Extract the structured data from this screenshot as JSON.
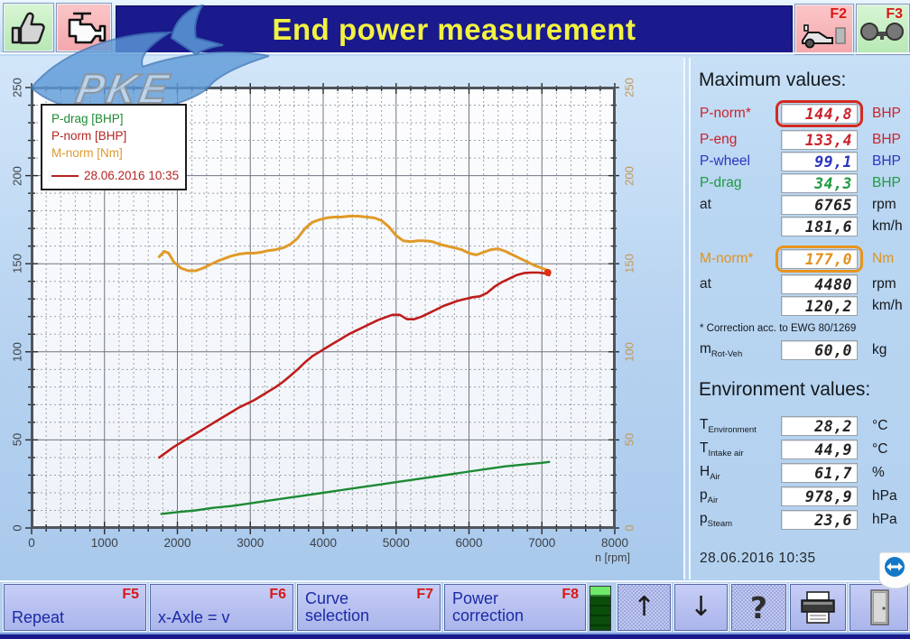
{
  "titlebar": {
    "title": "End power measurement",
    "f2": "F2",
    "f3": "F3"
  },
  "logo": {
    "text": "PKE"
  },
  "legend": {
    "items": [
      {
        "label": "P-drag [BHP]",
        "color": "#1e8a34"
      },
      {
        "label": "P-norm [BHP]",
        "color": "#b42424"
      },
      {
        "label": "M-norm [Nm]",
        "color": "#dc9a2e"
      }
    ],
    "date_line": "28.06.2016 10:35",
    "line_color": "#b42424"
  },
  "chart_data": {
    "type": "line",
    "xlabel": "n [rpm]",
    "xlim": [
      0,
      8000
    ],
    "x_major_step": 1000,
    "x_minor_step": 200,
    "ylim_left": [
      0,
      250
    ],
    "ylim_right": [
      0,
      250
    ],
    "y_major_step": 50,
    "y_minor_step": 10,
    "grid": true,
    "x_tick_labels": [
      "0",
      "1000",
      "2000",
      "3000",
      "4000",
      "5000",
      "6000",
      "7000",
      "8000"
    ],
    "y_tick_labels_left": [
      "0",
      "50",
      "100",
      "150",
      "200",
      "250"
    ],
    "y_tick_labels_right": [
      "0",
      "50",
      "100",
      "150",
      "200",
      "250"
    ],
    "series": [
      {
        "name": "M-norm [Nm]",
        "axis": "right",
        "color": "#e09a28",
        "width": 3,
        "points": [
          [
            1750,
            154
          ],
          [
            1820,
            157
          ],
          [
            1880,
            156
          ],
          [
            1950,
            151
          ],
          [
            2050,
            147.5
          ],
          [
            2150,
            146
          ],
          [
            2250,
            146
          ],
          [
            2350,
            147.5
          ],
          [
            2450,
            149.5
          ],
          [
            2550,
            151.5
          ],
          [
            2650,
            153
          ],
          [
            2750,
            154.5
          ],
          [
            2850,
            155.5
          ],
          [
            2950,
            156
          ],
          [
            3050,
            156
          ],
          [
            3150,
            156.5
          ],
          [
            3250,
            157.5
          ],
          [
            3350,
            158
          ],
          [
            3450,
            159
          ],
          [
            3550,
            161
          ],
          [
            3650,
            164.5
          ],
          [
            3750,
            170
          ],
          [
            3850,
            173.5
          ],
          [
            3950,
            175
          ],
          [
            4050,
            176
          ],
          [
            4150,
            176.5
          ],
          [
            4250,
            176.5
          ],
          [
            4350,
            177
          ],
          [
            4480,
            177
          ],
          [
            4600,
            176.5
          ],
          [
            4700,
            176
          ],
          [
            4800,
            174.5
          ],
          [
            4900,
            171
          ],
          [
            5000,
            166
          ],
          [
            5100,
            163
          ],
          [
            5200,
            162.5
          ],
          [
            5300,
            163
          ],
          [
            5400,
            163
          ],
          [
            5500,
            162.5
          ],
          [
            5600,
            161
          ],
          [
            5700,
            160
          ],
          [
            5800,
            159
          ],
          [
            5900,
            158
          ],
          [
            6000,
            156
          ],
          [
            6100,
            155
          ],
          [
            6200,
            156.5
          ],
          [
            6300,
            158
          ],
          [
            6400,
            158.5
          ],
          [
            6500,
            157
          ],
          [
            6600,
            155
          ],
          [
            6700,
            153
          ],
          [
            6800,
            151
          ],
          [
            6900,
            149
          ],
          [
            7000,
            147.5
          ],
          [
            7100,
            146
          ]
        ]
      },
      {
        "name": "P-norm [BHP]",
        "axis": "left",
        "color": "#bf1c1c",
        "width": 2.6,
        "points": [
          [
            1750,
            40
          ],
          [
            1850,
            43
          ],
          [
            1950,
            46
          ],
          [
            2050,
            48.5
          ],
          [
            2150,
            51
          ],
          [
            2250,
            53.5
          ],
          [
            2350,
            56
          ],
          [
            2450,
            58.5
          ],
          [
            2550,
            61
          ],
          [
            2650,
            63.5
          ],
          [
            2750,
            66
          ],
          [
            2850,
            68.5
          ],
          [
            2950,
            70.5
          ],
          [
            3050,
            72.5
          ],
          [
            3150,
            75
          ],
          [
            3250,
            77.5
          ],
          [
            3350,
            80
          ],
          [
            3450,
            83
          ],
          [
            3550,
            86.5
          ],
          [
            3650,
            90
          ],
          [
            3750,
            94
          ],
          [
            3850,
            97.5
          ],
          [
            3950,
            100
          ],
          [
            4050,
            102.5
          ],
          [
            4150,
            105
          ],
          [
            4250,
            107.5
          ],
          [
            4350,
            110
          ],
          [
            4450,
            112
          ],
          [
            4550,
            114
          ],
          [
            4650,
            116
          ],
          [
            4750,
            118
          ],
          [
            4850,
            119.5
          ],
          [
            4950,
            121
          ],
          [
            5050,
            121
          ],
          [
            5150,
            118.5
          ],
          [
            5250,
            118.5
          ],
          [
            5350,
            120
          ],
          [
            5450,
            122
          ],
          [
            5550,
            124
          ],
          [
            5650,
            126
          ],
          [
            5750,
            127.5
          ],
          [
            5850,
            129
          ],
          [
            5950,
            130
          ],
          [
            6050,
            131
          ],
          [
            6150,
            131.5
          ],
          [
            6250,
            133.5
          ],
          [
            6350,
            137
          ],
          [
            6450,
            139.5
          ],
          [
            6550,
            141.5
          ],
          [
            6650,
            143.5
          ],
          [
            6765,
            144.8
          ],
          [
            6850,
            145
          ],
          [
            6950,
            145
          ],
          [
            7050,
            144.5
          ],
          [
            7100,
            143.5
          ]
        ]
      },
      {
        "name": "P-drag [BHP]",
        "axis": "left",
        "color": "#1c8a34",
        "width": 2.4,
        "points": [
          [
            1780,
            8
          ],
          [
            2000,
            9
          ],
          [
            2250,
            10
          ],
          [
            2500,
            11.5
          ],
          [
            2750,
            12.5
          ],
          [
            3000,
            14
          ],
          [
            3250,
            15.5
          ],
          [
            3500,
            17
          ],
          [
            3750,
            18.5
          ],
          [
            4000,
            20
          ],
          [
            4250,
            21.5
          ],
          [
            4500,
            23
          ],
          [
            4750,
            24.5
          ],
          [
            5000,
            26
          ],
          [
            5250,
            27.5
          ],
          [
            5500,
            29
          ],
          [
            5750,
            30.5
          ],
          [
            6000,
            32
          ],
          [
            6250,
            33.5
          ],
          [
            6500,
            35
          ],
          [
            6750,
            36
          ],
          [
            7000,
            37
          ],
          [
            7100,
            37.5
          ]
        ]
      }
    ],
    "marker": {
      "x": 7080,
      "y": 145,
      "color": "#e03010"
    }
  },
  "max_values": {
    "title": "Maximum values:",
    "rows": [
      {
        "label": "P-norm*",
        "color": "#c8232d",
        "value": "144,8",
        "unit": "BHP",
        "highlight": "#d42a1e"
      },
      {
        "label": "P-eng",
        "color": "#c8232d",
        "value": "133,4",
        "unit": "BHP"
      },
      {
        "label": "P-wheel",
        "color": "#2a35c0",
        "value": "99,1",
        "unit": "BHP"
      },
      {
        "label": "P-drag",
        "color": "#1e9a40",
        "value": "34,3",
        "unit": "BHP"
      },
      {
        "label": "at",
        "color": "#222222",
        "value": "6765",
        "unit": "rpm",
        "vcolor": "#222222"
      },
      {
        "label": "",
        "color": "#222222",
        "value": "181,6",
        "unit": "km/h",
        "vcolor": "#222222"
      }
    ],
    "torque_rows": [
      {
        "label": "M-norm*",
        "color": "#e0921e",
        "value": "177,0",
        "unit": "Nm",
        "highlight": "#e8941c"
      },
      {
        "label": "at",
        "color": "#222222",
        "value": "4480",
        "unit": "rpm",
        "vcolor": "#222222"
      },
      {
        "label": "",
        "color": "#222222",
        "value": "120,2",
        "unit": "km/h",
        "vcolor": "#222222"
      }
    ],
    "correction_note": "* Correction acc. to EWG 80/1269",
    "mass_row": {
      "base": "m",
      "sub": "Rot-Veh",
      "value": "60,0",
      "unit": "kg"
    }
  },
  "env_values": {
    "title": "Environment values:",
    "rows": [
      {
        "base": "T",
        "sub": "Environment",
        "value": "28,2",
        "unit": "°C"
      },
      {
        "base": "T",
        "sub": "Intake air",
        "value": "44,9",
        "unit": "°C"
      },
      {
        "base": "H",
        "sub": "Air",
        "value": "61,7",
        "unit": "%"
      },
      {
        "base": "p",
        "sub": "Air",
        "value": "978,9",
        "unit": "hPa"
      },
      {
        "base": "p",
        "sub": "Steam",
        "value": "23,6",
        "unit": "hPa"
      }
    ]
  },
  "footer": {
    "datetime": "28.06.2016  10:35"
  },
  "bottom_buttons": [
    {
      "label": "Repeat",
      "fkey": "F5"
    },
    {
      "label": "x-Axle = v",
      "fkey": "F6"
    },
    {
      "label": "Curve selection",
      "fkey": "F7"
    },
    {
      "label": "Power correction",
      "fkey": "F8"
    }
  ],
  "icons": {
    "up_glyph": "↑",
    "down_glyph": "↓",
    "help_glyph": "?"
  }
}
